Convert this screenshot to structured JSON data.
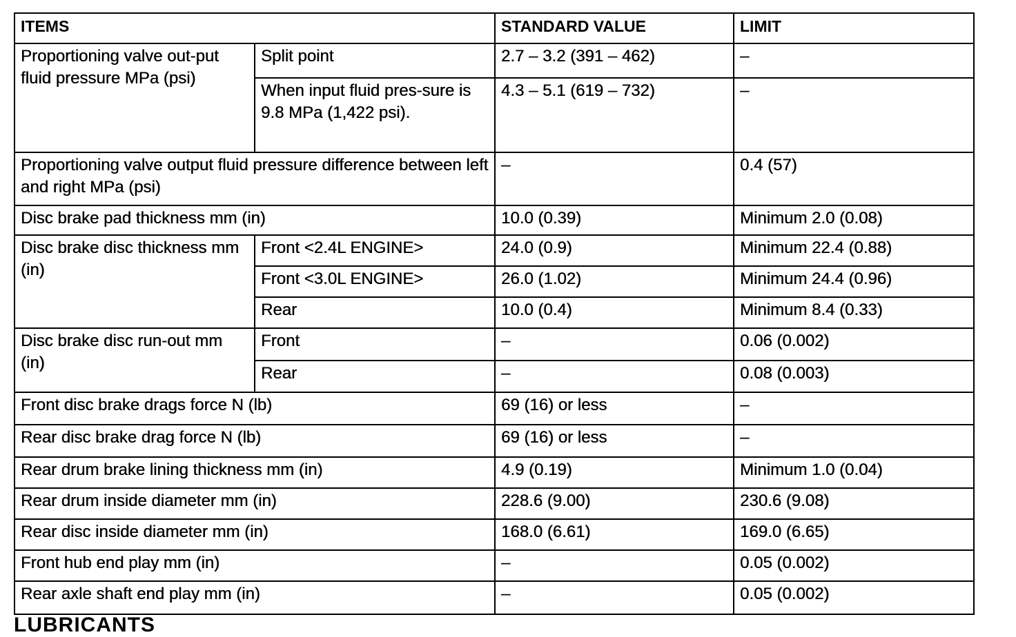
{
  "header": {
    "items": "ITEMS",
    "standard": "STANDARD VALUE",
    "limit": "LIMIT"
  },
  "rows": {
    "pv_item": "Proportioning valve out-put fluid pressure MPa (psi)",
    "pv_split": "Split point",
    "pv_split_std": "2.7 – 3.2 (391 – 462)",
    "pv_split_lim": "–",
    "pv_input": "When input fluid pres-sure is 9.8 MPa (1,422 psi).",
    "pv_input_std": "4.3 – 5.1 (619 – 732)",
    "pv_input_lim": "–",
    "pvd_item": "Proportioning valve output fluid pressure difference between left and right MPa (psi)",
    "pvd_std": "–",
    "pvd_lim": "0.4 (57)",
    "pad_item": "Disc brake pad thickness mm (in)",
    "pad_std": "10.0 (0.39)",
    "pad_lim": "Minimum 2.0 (0.08)",
    "disc_item": "Disc brake disc thickness mm (in)",
    "disc_f24": "Front <2.4L ENGINE>",
    "disc_f24_std": "24.0 (0.9)",
    "disc_f24_lim": "Minimum 22.4 (0.88)",
    "disc_f30": "Front <3.0L ENGINE>",
    "disc_f30_std": "26.0 (1.02)",
    "disc_f30_lim": "Minimum 24.4 (0.96)",
    "disc_r": "Rear",
    "disc_r_std": "10.0 (0.4)",
    "disc_r_lim": "Minimum 8.4 (0.33)",
    "ro_item": "Disc brake disc run-out mm (in)",
    "ro_f": "Front",
    "ro_f_std": "–",
    "ro_f_lim": "0.06 (0.002)",
    "ro_r": "Rear",
    "ro_r_std": "–",
    "ro_r_lim": "0.08 (0.003)",
    "fdrag_item": "Front disc brake drags force N (lb)",
    "fdrag_std": "69 (16) or less",
    "fdrag_lim": "–",
    "rdrag_item": "Rear disc brake drag force N (lb)",
    "rdrag_std": "69 (16) or less",
    "rdrag_lim": "–",
    "lining_item": "Rear drum brake lining thickness mm (in)",
    "lining_std": "4.9 (0.19)",
    "lining_lim": "Minimum 1.0 (0.04)",
    "drum_item": "Rear drum inside diameter mm (in)",
    "drum_std": "228.6 (9.00)",
    "drum_lim": "230.6 (9.08)",
    "rdisc_item": "Rear disc inside diameter mm (in)",
    "rdisc_std": "168.0 (6.61)",
    "rdisc_lim": "169.0 (6.65)",
    "hub_item": "Front hub end play mm (in)",
    "hub_std": "–",
    "hub_lim": "0.05 (0.002)",
    "axle_item": "Rear axle shaft end play mm (in)",
    "axle_std": "–",
    "axle_lim": "0.05 (0.002)"
  },
  "next_section": "LUBRICANTS"
}
